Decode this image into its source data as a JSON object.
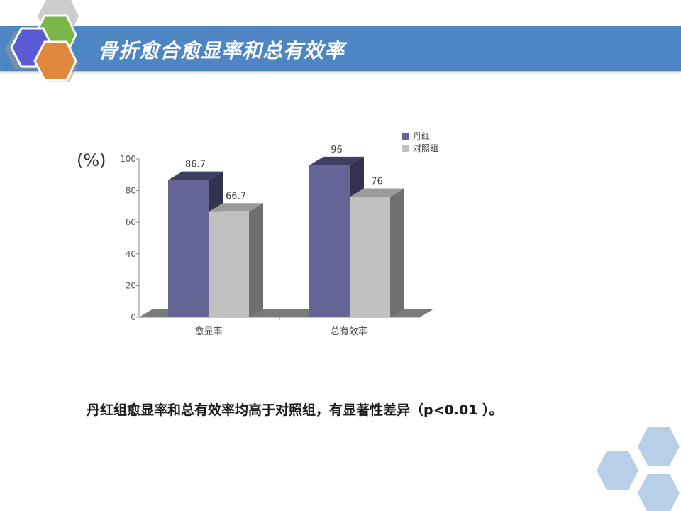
{
  "slide": {
    "title": "骨折愈合愈显率和总有效率",
    "conclusion": "丹红组愈显率和总有效率均高于对照组，有显著性差异（p<0.01 ）。",
    "accent_color": "#4e86c4"
  },
  "chart_data": {
    "type": "bar",
    "categories": [
      "愈显率",
      "总有效率"
    ],
    "series": [
      {
        "name": "丹红",
        "values": [
          86.7,
          96
        ],
        "labels": [
          "86.7",
          "96"
        ],
        "color": "#646497"
      },
      {
        "name": "对照组",
        "values": [
          66.7,
          76
        ],
        "labels": [
          "66.7",
          "76"
        ],
        "color": "#c0c0c0"
      }
    ],
    "ylabel": "(%)",
    "ylim": [
      0,
      100
    ],
    "yticks": [
      0,
      20,
      40,
      60,
      80,
      100
    ],
    "legend": "top-right",
    "grid": false
  }
}
